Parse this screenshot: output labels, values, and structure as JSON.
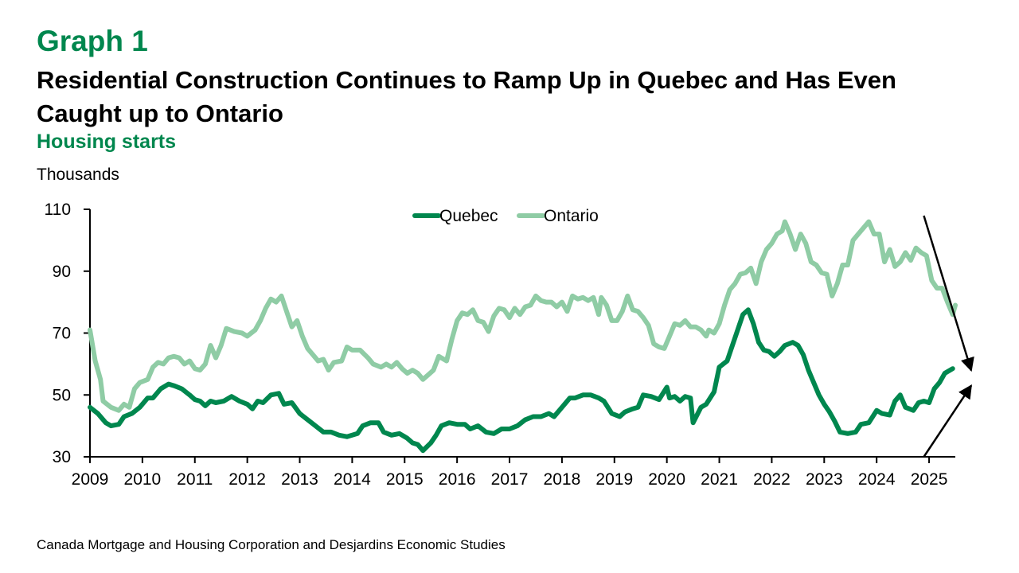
{
  "graph_label": "Graph 1",
  "source": "Canada Mortgage and Housing Corporation and Desjardins Economic Studies",
  "colors": {
    "quebec": "#00874e",
    "ontario": "#8fcca5",
    "accent": "#00874e",
    "arrow": "#000000"
  },
  "chart_data": {
    "type": "line",
    "title": "Residential Construction Continues to Ramp Up in Quebec and Has Even Caught up to Ontario",
    "subtitle": "Housing starts",
    "ylabel": "Thousands",
    "xlabel": "",
    "ylim": [
      30,
      110
    ],
    "yticks": [
      30,
      50,
      70,
      90,
      110
    ],
    "xlim": [
      2009.0,
      2025.5
    ],
    "xticks": [
      "2009",
      "2010",
      "2011",
      "2012",
      "2013",
      "2014",
      "2015",
      "2016",
      "2017",
      "2018",
      "2019",
      "2020",
      "2021",
      "2022",
      "2023",
      "2024",
      "2025"
    ],
    "legend": "top-center",
    "grid": false,
    "series": [
      {
        "name": "Quebec",
        "points": [
          [
            2009.0,
            46
          ],
          [
            2009.15,
            44
          ],
          [
            2009.3,
            41
          ],
          [
            2009.4,
            40
          ],
          [
            2009.55,
            40.5
          ],
          [
            2009.65,
            43
          ],
          [
            2009.8,
            44
          ],
          [
            2009.95,
            46
          ],
          [
            2010.1,
            49
          ],
          [
            2010.2,
            49
          ],
          [
            2010.35,
            52
          ],
          [
            2010.5,
            53.5
          ],
          [
            2010.6,
            53
          ],
          [
            2010.75,
            52
          ],
          [
            2010.9,
            50
          ],
          [
            2011.0,
            48.5
          ],
          [
            2011.1,
            48
          ],
          [
            2011.2,
            46.5
          ],
          [
            2011.3,
            48
          ],
          [
            2011.4,
            47.5
          ],
          [
            2011.55,
            48
          ],
          [
            2011.7,
            49.5
          ],
          [
            2011.85,
            48
          ],
          [
            2012.0,
            47
          ],
          [
            2012.1,
            45.5
          ],
          [
            2012.2,
            48
          ],
          [
            2012.3,
            47.5
          ],
          [
            2012.45,
            50
          ],
          [
            2012.6,
            50.5
          ],
          [
            2012.7,
            47
          ],
          [
            2012.85,
            47.5
          ],
          [
            2013.0,
            44
          ],
          [
            2013.15,
            42
          ],
          [
            2013.3,
            40
          ],
          [
            2013.45,
            38
          ],
          [
            2013.6,
            38
          ],
          [
            2013.75,
            37
          ],
          [
            2013.9,
            36.5
          ],
          [
            2014.0,
            37
          ],
          [
            2014.1,
            37.5
          ],
          [
            2014.2,
            40
          ],
          [
            2014.35,
            41
          ],
          [
            2014.5,
            41
          ],
          [
            2014.6,
            38
          ],
          [
            2014.75,
            37
          ],
          [
            2014.9,
            37.5
          ],
          [
            2015.05,
            36
          ],
          [
            2015.15,
            34.5
          ],
          [
            2015.25,
            34
          ],
          [
            2015.35,
            32
          ],
          [
            2015.5,
            34.5
          ],
          [
            2015.6,
            37
          ],
          [
            2015.7,
            40
          ],
          [
            2015.85,
            41
          ],
          [
            2016.0,
            40.5
          ],
          [
            2016.15,
            40.5
          ],
          [
            2016.25,
            39
          ],
          [
            2016.4,
            40
          ],
          [
            2016.55,
            38
          ],
          [
            2016.7,
            37.5
          ],
          [
            2016.85,
            39
          ],
          [
            2017.0,
            39
          ],
          [
            2017.15,
            40
          ],
          [
            2017.3,
            42
          ],
          [
            2017.45,
            43
          ],
          [
            2017.6,
            43
          ],
          [
            2017.75,
            44
          ],
          [
            2017.85,
            43
          ],
          [
            2018.0,
            46
          ],
          [
            2018.15,
            49
          ],
          [
            2018.25,
            49
          ],
          [
            2018.4,
            50
          ],
          [
            2018.55,
            50
          ],
          [
            2018.7,
            49
          ],
          [
            2018.8,
            48
          ],
          [
            2018.95,
            44
          ],
          [
            2019.1,
            43
          ],
          [
            2019.2,
            44.5
          ],
          [
            2019.35,
            45.5
          ],
          [
            2019.45,
            46
          ],
          [
            2019.55,
            50
          ],
          [
            2019.7,
            49.5
          ],
          [
            2019.85,
            48.5
          ],
          [
            2020.0,
            52.5
          ],
          [
            2020.05,
            49
          ],
          [
            2020.15,
            49.5
          ],
          [
            2020.25,
            48
          ],
          [
            2020.35,
            49.5
          ],
          [
            2020.45,
            49
          ],
          [
            2020.5,
            41
          ],
          [
            2020.65,
            46
          ],
          [
            2020.75,
            47
          ],
          [
            2020.9,
            51
          ],
          [
            2021.0,
            59
          ],
          [
            2021.15,
            61
          ],
          [
            2021.25,
            66
          ],
          [
            2021.35,
            71
          ],
          [
            2021.45,
            76
          ],
          [
            2021.55,
            77.5
          ],
          [
            2021.65,
            73
          ],
          [
            2021.75,
            67
          ],
          [
            2021.85,
            64.5
          ],
          [
            2021.95,
            64
          ],
          [
            2022.05,
            62.5
          ],
          [
            2022.15,
            64
          ],
          [
            2022.25,
            66
          ],
          [
            2022.4,
            67
          ],
          [
            2022.5,
            66
          ],
          [
            2022.6,
            63
          ],
          [
            2022.7,
            58
          ],
          [
            2022.8,
            54
          ],
          [
            2022.9,
            50
          ],
          [
            2023.0,
            47
          ],
          [
            2023.1,
            44.5
          ],
          [
            2023.2,
            41.5
          ],
          [
            2023.3,
            38
          ],
          [
            2023.45,
            37.5
          ],
          [
            2023.6,
            38
          ],
          [
            2023.7,
            40.5
          ],
          [
            2023.85,
            41
          ],
          [
            2024.0,
            45
          ],
          [
            2024.1,
            44
          ],
          [
            2024.25,
            43.5
          ],
          [
            2024.35,
            48
          ],
          [
            2024.45,
            50
          ],
          [
            2024.55,
            46
          ],
          [
            2024.7,
            45
          ],
          [
            2024.8,
            47.5
          ],
          [
            2024.9,
            48
          ],
          [
            2025.0,
            47.5
          ],
          [
            2025.1,
            52
          ],
          [
            2025.2,
            54
          ],
          [
            2025.3,
            57
          ],
          [
            2025.45,
            58.5
          ]
        ]
      },
      {
        "name": "Ontario",
        "points": [
          [
            2009.0,
            71
          ],
          [
            2009.1,
            61
          ],
          [
            2009.2,
            55
          ],
          [
            2009.25,
            48
          ],
          [
            2009.4,
            46
          ],
          [
            2009.55,
            45
          ],
          [
            2009.65,
            47
          ],
          [
            2009.75,
            46
          ],
          [
            2009.85,
            52
          ],
          [
            2009.95,
            54
          ],
          [
            2010.1,
            55
          ],
          [
            2010.2,
            59
          ],
          [
            2010.3,
            60.5
          ],
          [
            2010.4,
            60
          ],
          [
            2010.5,
            62
          ],
          [
            2010.6,
            62.5
          ],
          [
            2010.7,
            62
          ],
          [
            2010.8,
            60
          ],
          [
            2010.9,
            61
          ],
          [
            2011.0,
            58.5
          ],
          [
            2011.1,
            58
          ],
          [
            2011.2,
            60
          ],
          [
            2011.3,
            66
          ],
          [
            2011.4,
            62
          ],
          [
            2011.5,
            66
          ],
          [
            2011.6,
            71.5
          ],
          [
            2011.75,
            70.5
          ],
          [
            2011.9,
            70
          ],
          [
            2012.0,
            69
          ],
          [
            2012.15,
            71
          ],
          [
            2012.25,
            74
          ],
          [
            2012.35,
            78
          ],
          [
            2012.45,
            81
          ],
          [
            2012.55,
            80
          ],
          [
            2012.65,
            82
          ],
          [
            2012.75,
            77
          ],
          [
            2012.85,
            72
          ],
          [
            2012.95,
            74
          ],
          [
            2013.05,
            69
          ],
          [
            2013.15,
            65
          ],
          [
            2013.25,
            63
          ],
          [
            2013.35,
            61
          ],
          [
            2013.45,
            61.5
          ],
          [
            2013.55,
            58
          ],
          [
            2013.65,
            60.5
          ],
          [
            2013.8,
            61
          ],
          [
            2013.9,
            65.5
          ],
          [
            2014.0,
            64.5
          ],
          [
            2014.15,
            64.5
          ],
          [
            2014.3,
            62
          ],
          [
            2014.4,
            60
          ],
          [
            2014.55,
            59
          ],
          [
            2014.65,
            60
          ],
          [
            2014.75,
            59
          ],
          [
            2014.85,
            60.5
          ],
          [
            2014.95,
            58.5
          ],
          [
            2015.05,
            57
          ],
          [
            2015.15,
            58
          ],
          [
            2015.25,
            57
          ],
          [
            2015.35,
            55
          ],
          [
            2015.45,
            56.5
          ],
          [
            2015.55,
            58
          ],
          [
            2015.65,
            62.5
          ],
          [
            2015.8,
            61
          ],
          [
            2015.9,
            68
          ],
          [
            2016.0,
            74
          ],
          [
            2016.1,
            76.5
          ],
          [
            2016.2,
            76
          ],
          [
            2016.3,
            77.5
          ],
          [
            2016.4,
            74
          ],
          [
            2016.5,
            73.5
          ],
          [
            2016.6,
            70.5
          ],
          [
            2016.7,
            75.5
          ],
          [
            2016.8,
            78
          ],
          [
            2016.9,
            77.5
          ],
          [
            2017.0,
            75
          ],
          [
            2017.1,
            78
          ],
          [
            2017.2,
            76
          ],
          [
            2017.3,
            78.5
          ],
          [
            2017.4,
            79
          ],
          [
            2017.5,
            82
          ],
          [
            2017.6,
            80.5
          ],
          [
            2017.7,
            80
          ],
          [
            2017.8,
            80
          ],
          [
            2017.9,
            78.5
          ],
          [
            2018.0,
            80
          ],
          [
            2018.1,
            77
          ],
          [
            2018.2,
            82
          ],
          [
            2018.3,
            81
          ],
          [
            2018.4,
            81.5
          ],
          [
            2018.5,
            80.5
          ],
          [
            2018.6,
            81.5
          ],
          [
            2018.7,
            76
          ],
          [
            2018.75,
            81.5
          ],
          [
            2018.85,
            79
          ],
          [
            2018.95,
            74
          ],
          [
            2019.05,
            74
          ],
          [
            2019.15,
            77
          ],
          [
            2019.25,
            82
          ],
          [
            2019.35,
            77.5
          ],
          [
            2019.45,
            77
          ],
          [
            2019.55,
            75
          ],
          [
            2019.65,
            72.5
          ],
          [
            2019.75,
            66.5
          ],
          [
            2019.85,
            65.5
          ],
          [
            2019.95,
            65
          ],
          [
            2020.05,
            69
          ],
          [
            2020.15,
            73
          ],
          [
            2020.25,
            72.5
          ],
          [
            2020.35,
            74
          ],
          [
            2020.45,
            72
          ],
          [
            2020.55,
            72
          ],
          [
            2020.65,
            71
          ],
          [
            2020.75,
            69
          ],
          [
            2020.8,
            71
          ],
          [
            2020.9,
            70
          ],
          [
            2021.0,
            73
          ],
          [
            2021.1,
            79
          ],
          [
            2021.2,
            84
          ],
          [
            2021.3,
            86
          ],
          [
            2021.4,
            89
          ],
          [
            2021.5,
            89.5
          ],
          [
            2021.6,
            91
          ],
          [
            2021.7,
            86
          ],
          [
            2021.8,
            93
          ],
          [
            2021.9,
            97
          ],
          [
            2022.0,
            99
          ],
          [
            2022.1,
            102
          ],
          [
            2022.2,
            103
          ],
          [
            2022.25,
            106
          ],
          [
            2022.35,
            102
          ],
          [
            2022.45,
            97
          ],
          [
            2022.55,
            102
          ],
          [
            2022.65,
            99
          ],
          [
            2022.75,
            93
          ],
          [
            2022.85,
            92
          ],
          [
            2022.95,
            89.5
          ],
          [
            2023.05,
            89
          ],
          [
            2023.15,
            82
          ],
          [
            2023.25,
            86
          ],
          [
            2023.35,
            92
          ],
          [
            2023.45,
            92
          ],
          [
            2023.55,
            100
          ],
          [
            2023.65,
            102
          ],
          [
            2023.75,
            104
          ],
          [
            2023.85,
            106
          ],
          [
            2023.95,
            102
          ],
          [
            2024.05,
            102
          ],
          [
            2024.15,
            93
          ],
          [
            2024.25,
            97
          ],
          [
            2024.35,
            91.5
          ],
          [
            2024.45,
            93
          ],
          [
            2024.55,
            96
          ],
          [
            2024.65,
            93.5
          ],
          [
            2024.75,
            97.5
          ],
          [
            2024.85,
            96
          ],
          [
            2024.95,
            95
          ],
          [
            2025.05,
            87
          ],
          [
            2025.15,
            84.5
          ],
          [
            2025.25,
            84.5
          ],
          [
            2025.35,
            80
          ],
          [
            2025.45,
            76
          ],
          [
            2025.5,
            79
          ]
        ]
      }
    ],
    "annotations": [
      {
        "type": "arrow",
        "from": [
          2024.9,
          110
        ],
        "to": [
          2025.5,
          61
        ]
      },
      {
        "type": "arrow",
        "from": [
          2024.9,
          30
        ],
        "to": [
          2025.5,
          52
        ]
      }
    ]
  }
}
